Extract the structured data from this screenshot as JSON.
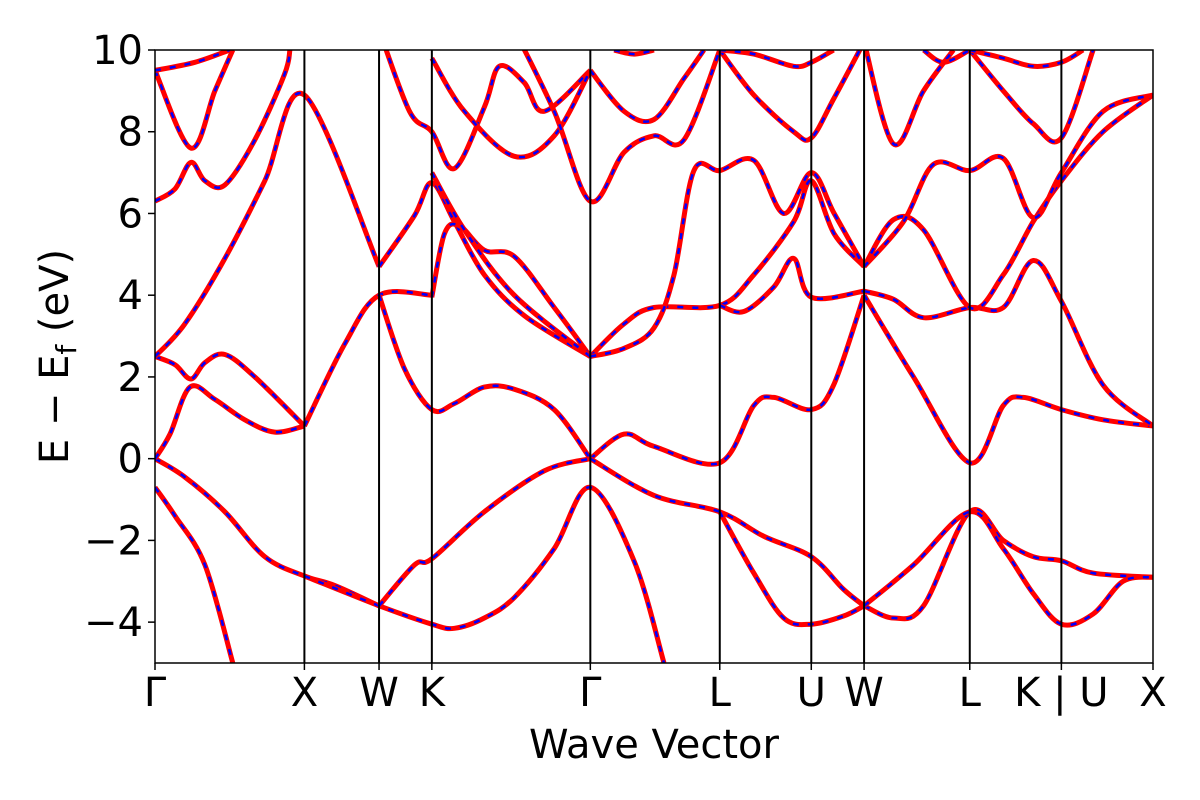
{
  "chart_data": {
    "type": "line",
    "title": "",
    "xlabel": "Wave Vector",
    "ylabel": "E − E_f (eV)",
    "ylabel_main": "E − E",
    "ylabel_sub": "f",
    "ylabel_unit": " (eV)",
    "ylim": [
      -5,
      10
    ],
    "xlim": [
      0,
      1
    ],
    "grid": false,
    "yticks": [
      -4,
      -2,
      0,
      2,
      4,
      6,
      8,
      10
    ],
    "ytick_labels": [
      "−4",
      "−2",
      "0",
      "2",
      "4",
      "6",
      "8",
      "10"
    ],
    "kpoints": [
      {
        "label": "Γ",
        "x": 0.0
      },
      {
        "label": "X",
        "x": 0.1497
      },
      {
        "label": "W",
        "x": 0.2245
      },
      {
        "label": "K",
        "x": 0.2774
      },
      {
        "label": "Γ",
        "x": 0.4362
      },
      {
        "label": "L",
        "x": 0.5659
      },
      {
        "label": "U",
        "x": 0.6576
      },
      {
        "label": "W",
        "x": 0.7105
      },
      {
        "label": "L",
        "x": 0.8164
      },
      {
        "label": "K | U",
        "x": 0.9082
      },
      {
        "label": "X",
        "x": 1.0
      }
    ],
    "colors": {
      "line_primary": "#ff0000",
      "line_secondary": "#0000ff",
      "kpoint_line": "#000000"
    },
    "series": [
      {
        "points": [
          [
            0.0,
            -0.7
          ],
          [
            0.02,
            -1.4
          ],
          [
            0.05,
            -2.6
          ],
          [
            0.078,
            -5.0
          ]
        ]
      },
      {
        "points": [
          [
            0.0,
            0.0
          ],
          [
            0.03,
            -0.45
          ],
          [
            0.07,
            -1.3
          ],
          [
            0.11,
            -2.4
          ],
          [
            0.1497,
            -2.87
          ],
          [
            0.18,
            -3.1
          ],
          [
            0.2245,
            -3.6
          ]
        ]
      },
      {
        "points": [
          [
            0.0,
            0.0
          ],
          [
            0.015,
            0.6
          ],
          [
            0.035,
            1.75
          ],
          [
            0.06,
            1.45
          ],
          [
            0.09,
            0.95
          ],
          [
            0.12,
            0.65
          ],
          [
            0.1497,
            0.8
          ]
        ]
      },
      {
        "points": [
          [
            0.0,
            2.5
          ],
          [
            0.02,
            2.3
          ],
          [
            0.036,
            1.95
          ],
          [
            0.05,
            2.35
          ],
          [
            0.07,
            2.55
          ],
          [
            0.1,
            2.0
          ],
          [
            0.1497,
            0.8
          ]
        ]
      },
      {
        "points": [
          [
            0.0,
            2.5
          ],
          [
            0.03,
            3.3
          ],
          [
            0.07,
            4.9
          ],
          [
            0.11,
            6.8
          ],
          [
            0.1497,
            8.9
          ],
          [
            0.2245,
            4.7
          ]
        ]
      },
      {
        "points": [
          [
            0.0,
            6.3
          ],
          [
            0.02,
            6.6
          ],
          [
            0.036,
            7.25
          ],
          [
            0.05,
            6.8
          ],
          [
            0.07,
            6.7
          ],
          [
            0.1,
            7.8
          ],
          [
            0.1297,
            9.4
          ],
          [
            0.1352,
            10.0
          ]
        ]
      },
      {
        "points": [
          [
            0.0,
            9.5
          ],
          [
            0.036,
            7.6
          ],
          [
            0.06,
            9.0
          ],
          [
            0.078,
            10.0
          ]
        ]
      },
      {
        "points": [
          [
            0.0,
            9.5
          ],
          [
            0.04,
            9.7
          ],
          [
            0.075,
            10.0
          ]
        ]
      },
      {
        "points": [
          [
            0.1497,
            -2.87
          ],
          [
            0.2245,
            -3.6
          ],
          [
            0.2774,
            -4.05
          ],
          [
            0.3,
            -4.15
          ],
          [
            0.33,
            -3.9
          ],
          [
            0.36,
            -3.4
          ],
          [
            0.4,
            -2.2
          ],
          [
            0.4362,
            -0.7
          ],
          [
            0.48,
            -2.5
          ],
          [
            0.51,
            -5.0
          ]
        ]
      },
      {
        "points": [
          [
            0.1497,
            0.8
          ],
          [
            0.19,
            2.8
          ],
          [
            0.2245,
            4.0
          ],
          [
            0.2774,
            4.0
          ]
        ]
      },
      {
        "points": [
          [
            0.2245,
            4.0
          ],
          [
            0.25,
            2.2
          ],
          [
            0.2774,
            1.2
          ],
          [
            0.3,
            1.35
          ],
          [
            0.33,
            1.75
          ],
          [
            0.36,
            1.7
          ],
          [
            0.4,
            1.2
          ],
          [
            0.4362,
            0.0
          ]
        ]
      },
      {
        "points": [
          [
            0.2245,
            -3.6
          ],
          [
            0.26,
            -2.6
          ],
          [
            0.2774,
            -2.45
          ],
          [
            0.33,
            -1.3
          ],
          [
            0.39,
            -0.3
          ],
          [
            0.4362,
            0.0
          ]
        ]
      },
      {
        "points": [
          [
            0.2245,
            4.7
          ],
          [
            0.26,
            5.95
          ],
          [
            0.2774,
            6.75
          ],
          [
            0.3,
            5.8
          ],
          [
            0.33,
            4.5
          ],
          [
            0.37,
            3.5
          ],
          [
            0.4362,
            2.5
          ]
        ]
      },
      {
        "points": [
          [
            0.2774,
            3.95
          ],
          [
            0.29,
            5.5
          ],
          [
            0.305,
            5.7
          ],
          [
            0.33,
            5.1
          ],
          [
            0.36,
            4.95
          ],
          [
            0.4,
            3.7
          ],
          [
            0.4362,
            2.5
          ]
        ]
      },
      {
        "points": [
          [
            0.2774,
            7.0
          ],
          [
            0.31,
            5.6
          ],
          [
            0.36,
            4.0
          ],
          [
            0.4362,
            2.5
          ]
        ]
      },
      {
        "points": [
          [
            0.2245,
            10.5
          ],
          [
            0.255,
            8.5
          ],
          [
            0.2774,
            8.0
          ],
          [
            0.3,
            7.1
          ],
          [
            0.33,
            8.6
          ],
          [
            0.345,
            9.6
          ],
          [
            0.37,
            9.2
          ],
          [
            0.39,
            8.5
          ],
          [
            0.4362,
            9.5
          ]
        ]
      },
      {
        "points": [
          [
            0.2774,
            9.8
          ],
          [
            0.31,
            8.5
          ],
          [
            0.36,
            7.4
          ],
          [
            0.4,
            7.9
          ],
          [
            0.4362,
            9.5
          ]
        ]
      },
      {
        "points": [
          [
            0.36,
            10.5
          ],
          [
            0.4,
            8.5
          ],
          [
            0.4362,
            6.3
          ],
          [
            0.47,
            7.5
          ],
          [
            0.5,
            7.9
          ],
          [
            0.53,
            7.8
          ],
          [
            0.5659,
            10.0
          ]
        ]
      },
      {
        "points": [
          [
            0.4362,
            9.5
          ],
          [
            0.47,
            8.5
          ],
          [
            0.5,
            8.3
          ],
          [
            0.53,
            9.3
          ],
          [
            0.55,
            10.0
          ]
        ]
      },
      {
        "points": [
          [
            0.46,
            10.0
          ],
          [
            0.48,
            9.9
          ],
          [
            0.5,
            10.0
          ]
        ]
      },
      {
        "points": [
          [
            0.4362,
            2.5
          ],
          [
            0.47,
            3.3
          ],
          [
            0.5,
            3.7
          ],
          [
            0.5659,
            3.75
          ],
          [
            0.6,
            4.5
          ],
          [
            0.64,
            5.8
          ],
          [
            0.6576,
            6.8
          ],
          [
            0.6806,
            5.5
          ],
          [
            0.7105,
            4.7
          ]
        ]
      },
      {
        "points": [
          [
            0.4362,
            2.5
          ],
          [
            0.47,
            2.7
          ],
          [
            0.5,
            3.2
          ],
          [
            0.52,
            4.5
          ],
          [
            0.54,
            7.05
          ],
          [
            0.5659,
            7.05
          ],
          [
            0.6,
            7.3
          ],
          [
            0.63,
            6.0
          ],
          [
            0.6576,
            7.0
          ],
          [
            0.6806,
            6.0
          ],
          [
            0.7105,
            4.7
          ]
        ]
      },
      {
        "points": [
          [
            0.5659,
            3.75
          ],
          [
            0.59,
            3.6
          ],
          [
            0.62,
            4.2
          ],
          [
            0.64,
            4.9
          ],
          [
            0.6576,
            3.95
          ],
          [
            0.7105,
            4.1
          ]
        ]
      },
      {
        "points": [
          [
            0.4362,
            0.0
          ],
          [
            0.47,
            0.6
          ],
          [
            0.5,
            0.3
          ],
          [
            0.5659,
            -0.1
          ],
          [
            0.6,
            1.3
          ],
          [
            0.62,
            1.5
          ],
          [
            0.6576,
            1.2
          ],
          [
            0.68,
            1.8
          ],
          [
            0.7105,
            4.0
          ]
        ]
      },
      {
        "points": [
          [
            0.4362,
            0.0
          ],
          [
            0.5,
            -0.9
          ],
          [
            0.5659,
            -1.3
          ],
          [
            0.61,
            -1.9
          ],
          [
            0.6576,
            -2.4
          ],
          [
            0.69,
            -3.2
          ],
          [
            0.7105,
            -3.6
          ]
        ]
      },
      {
        "points": [
          [
            0.5659,
            -1.3
          ],
          [
            0.6,
            -2.8
          ],
          [
            0.63,
            -3.9
          ],
          [
            0.6576,
            -4.05
          ],
          [
            0.69,
            -3.85
          ],
          [
            0.7105,
            -3.6
          ]
        ]
      },
      {
        "points": [
          [
            0.5659,
            10.0
          ],
          [
            0.6,
            8.9
          ],
          [
            0.64,
            8.0
          ],
          [
            0.6576,
            7.85
          ],
          [
            0.68,
            8.8
          ],
          [
            0.7105,
            10.2
          ]
        ]
      },
      {
        "points": [
          [
            0.5659,
            10.0
          ],
          [
            0.6,
            9.9
          ],
          [
            0.64,
            9.6
          ],
          [
            0.6576,
            9.7
          ],
          [
            0.68,
            10.0
          ]
        ]
      },
      {
        "points": [
          [
            0.7105,
            -3.6
          ],
          [
            0.74,
            -3.9
          ],
          [
            0.77,
            -3.6
          ],
          [
            0.8164,
            -1.3
          ],
          [
            0.85,
            -2.0
          ],
          [
            0.88,
            -2.4
          ],
          [
            0.9082,
            -2.5
          ],
          [
            0.94,
            -2.8
          ],
          [
            1.0,
            -2.9
          ]
        ]
      },
      {
        "points": [
          [
            0.7105,
            -3.6
          ],
          [
            0.76,
            -2.6
          ],
          [
            0.8164,
            -1.3
          ],
          [
            0.85,
            -2.2
          ],
          [
            0.88,
            -3.3
          ],
          [
            0.9082,
            -4.05
          ],
          [
            0.94,
            -3.8
          ],
          [
            0.97,
            -3.0
          ],
          [
            1.0,
            -2.9
          ]
        ]
      },
      {
        "points": [
          [
            0.7105,
            4.0
          ],
          [
            0.76,
            2.0
          ],
          [
            0.8164,
            -0.1
          ],
          [
            0.85,
            1.3
          ],
          [
            0.87,
            1.5
          ],
          [
            0.9082,
            1.2
          ],
          [
            0.95,
            0.95
          ],
          [
            1.0,
            0.8
          ]
        ]
      },
      {
        "points": [
          [
            0.7105,
            4.1
          ],
          [
            0.74,
            3.9
          ],
          [
            0.77,
            3.45
          ],
          [
            0.8164,
            3.7
          ],
          [
            0.85,
            3.7
          ],
          [
            0.88,
            4.85
          ],
          [
            0.9082,
            3.85
          ],
          [
            0.95,
            1.8
          ],
          [
            1.0,
            0.8
          ]
        ]
      },
      {
        "points": [
          [
            0.7105,
            4.7
          ],
          [
            0.74,
            5.85
          ],
          [
            0.77,
            5.6
          ],
          [
            0.8164,
            3.7
          ],
          [
            0.85,
            4.5
          ],
          [
            0.88,
            5.8
          ],
          [
            0.9082,
            6.8
          ],
          [
            0.95,
            8.0
          ],
          [
            1.0,
            8.9
          ]
        ]
      },
      {
        "points": [
          [
            0.7105,
            4.7
          ],
          [
            0.75,
            5.8
          ],
          [
            0.78,
            7.2
          ],
          [
            0.8164,
            7.05
          ],
          [
            0.85,
            7.35
          ],
          [
            0.88,
            5.9
          ],
          [
            0.9082,
            7.0
          ],
          [
            0.95,
            8.5
          ],
          [
            1.0,
            8.9
          ]
        ]
      },
      {
        "points": [
          [
            0.7105,
            10.2
          ],
          [
            0.74,
            7.7
          ],
          [
            0.77,
            9.0
          ],
          [
            0.8,
            10.0
          ]
        ]
      },
      {
        "points": [
          [
            0.77,
            10.0
          ],
          [
            0.79,
            9.7
          ],
          [
            0.8164,
            10.0
          ]
        ]
      },
      {
        "points": [
          [
            0.8164,
            10.0
          ],
          [
            0.85,
            9.0
          ],
          [
            0.88,
            8.2
          ],
          [
            0.9082,
            7.85
          ],
          [
            0.94,
            10.0
          ]
        ]
      },
      {
        "points": [
          [
            0.8164,
            10.0
          ],
          [
            0.85,
            9.8
          ],
          [
            0.88,
            9.6
          ],
          [
            0.9082,
            9.7
          ],
          [
            0.93,
            10.0
          ]
        ]
      }
    ]
  }
}
